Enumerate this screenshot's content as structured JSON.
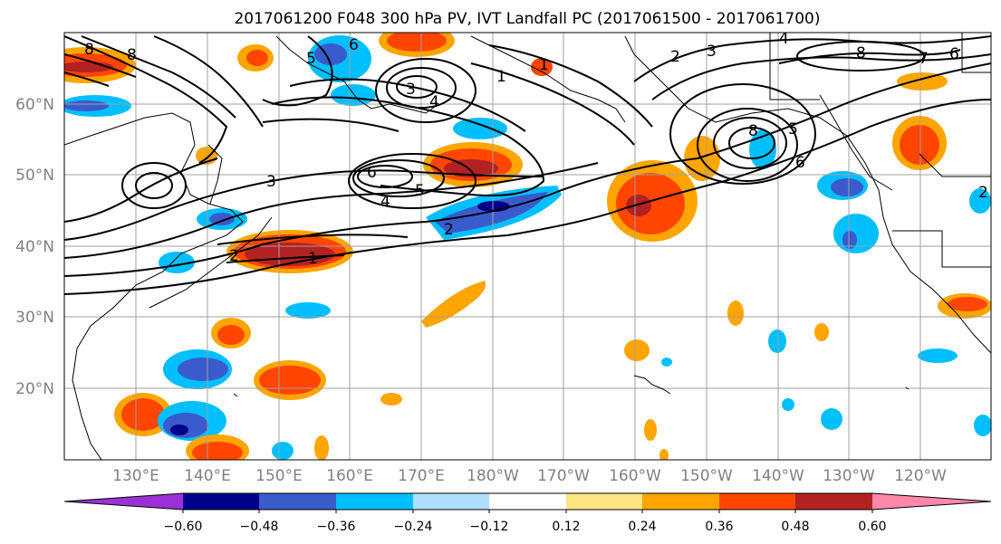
{
  "title": "2017061200 F048 300 hPa PV, IVT Landfall PC (2017061500 - 2017061700)",
  "map": {
    "lat_labels": [
      "60°N",
      "50°N",
      "40°N",
      "30°N",
      "20°N"
    ],
    "lon_labels": [
      "130°E",
      "140°E",
      "150°E",
      "160°E",
      "170°E",
      "180°W",
      "170°W",
      "160°W",
      "150°W",
      "140°W",
      "130°W",
      "120°W"
    ]
  },
  "contour_labels": [
    "8",
    "8",
    "5",
    "6",
    "1",
    "3",
    "4",
    "6",
    "1",
    "4",
    "5",
    "3",
    "2",
    "1",
    "2",
    "2",
    "3",
    "8",
    "5",
    "6",
    "4",
    "8",
    "7",
    "6",
    "2"
  ],
  "colorbar": {
    "tick_labels": [
      "−0.60",
      "−0.48",
      "−0.36",
      "−0.24",
      "−0.12",
      "0.12",
      "0.24",
      "0.36",
      "0.48",
      "0.60"
    ],
    "colors": [
      "#9b30d9",
      "#00008b",
      "#3a5bcc",
      "#00bfff",
      "#b0e0ff",
      "#ffffff",
      "#ffe680",
      "#ffa500",
      "#ff4500",
      "#b22222",
      "#ff88aa"
    ]
  },
  "colors": {
    "gridline": "#a0a0a0",
    "coast": "#000000",
    "contour": "#000000"
  }
}
